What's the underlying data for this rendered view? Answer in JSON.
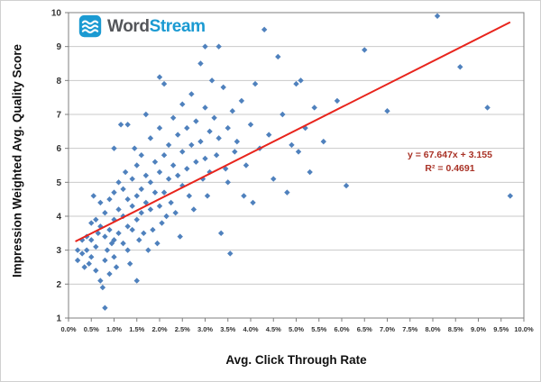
{
  "logo": {
    "icon": "waves-icon",
    "text_primary": "Word",
    "text_secondary": "Stream",
    "primary_color": "#54565a",
    "secondary_color": "#1b9ad2",
    "icon_color": "#1b9ad2"
  },
  "chart_data": {
    "type": "scatter",
    "title": "",
    "xlabel": "Avg. Click Through Rate",
    "ylabel": "Impression Weighted Avg. Quality Score",
    "x_unit": "percent",
    "xlim": [
      0,
      10
    ],
    "ylim": [
      1,
      10
    ],
    "grid": "horizontal",
    "legend": "none",
    "x_ticks": [
      "0.0%",
      "0.5%",
      "1.0%",
      "1.5%",
      "2.0%",
      "2.5%",
      "3.0%",
      "3.5%",
      "4.0%",
      "4.5%",
      "5.0%",
      "5.5%",
      "6.0%",
      "6.5%",
      "7.0%",
      "7.5%",
      "8.0%",
      "8.5%",
      "9.0%",
      "9.5%",
      "10.0%"
    ],
    "y_ticks": [
      "1",
      "2",
      "3",
      "4",
      "5",
      "6",
      "7",
      "8",
      "9",
      "10"
    ],
    "marker": {
      "shape": "diamond",
      "color": "#4f81bd",
      "size": 6.4
    },
    "gridline_color": "#c9c9c9",
    "axis_color": "#7f7f7f",
    "tick_label_color": "#333333",
    "points": [
      [
        0.2,
        3.0
      ],
      [
        0.2,
        2.7
      ],
      [
        0.3,
        3.3
      ],
      [
        0.3,
        2.9
      ],
      [
        0.35,
        2.5
      ],
      [
        0.4,
        3.4
      ],
      [
        0.4,
        3.0
      ],
      [
        0.45,
        2.6
      ],
      [
        0.5,
        3.8
      ],
      [
        0.5,
        3.3
      ],
      [
        0.5,
        2.8
      ],
      [
        0.55,
        4.6
      ],
      [
        0.6,
        3.9
      ],
      [
        0.6,
        3.1
      ],
      [
        0.6,
        2.4
      ],
      [
        0.65,
        3.5
      ],
      [
        0.7,
        4.4
      ],
      [
        0.7,
        3.7
      ],
      [
        0.7,
        2.1
      ],
      [
        0.75,
        1.9
      ],
      [
        0.8,
        4.1
      ],
      [
        0.8,
        3.4
      ],
      [
        0.8,
        2.7
      ],
      [
        0.8,
        1.3
      ],
      [
        0.85,
        3.0
      ],
      [
        0.9,
        4.5
      ],
      [
        0.9,
        3.6
      ],
      [
        0.9,
        2.3
      ],
      [
        0.95,
        3.2
      ],
      [
        1.0,
        6.0
      ],
      [
        1.0,
        4.7
      ],
      [
        1.0,
        3.9
      ],
      [
        1.0,
        3.3
      ],
      [
        1.0,
        2.8
      ],
      [
        1.05,
        2.5
      ],
      [
        1.1,
        5.0
      ],
      [
        1.1,
        4.2
      ],
      [
        1.1,
        3.5
      ],
      [
        1.15,
        6.7
      ],
      [
        1.2,
        4.8
      ],
      [
        1.2,
        4.0
      ],
      [
        1.2,
        3.2
      ],
      [
        1.25,
        5.3
      ],
      [
        1.3,
        6.7
      ],
      [
        1.3,
        4.5
      ],
      [
        1.3,
        3.7
      ],
      [
        1.3,
        3.0
      ],
      [
        1.35,
        2.6
      ],
      [
        1.4,
        5.1
      ],
      [
        1.4,
        4.3
      ],
      [
        1.4,
        3.6
      ],
      [
        1.45,
        6.0
      ],
      [
        1.5,
        5.5
      ],
      [
        1.5,
        4.6
      ],
      [
        1.5,
        3.9
      ],
      [
        1.5,
        2.1
      ],
      [
        1.55,
        3.3
      ],
      [
        1.6,
        5.8
      ],
      [
        1.6,
        4.8
      ],
      [
        1.6,
        4.1
      ],
      [
        1.65,
        3.5
      ],
      [
        1.7,
        7.0
      ],
      [
        1.7,
        5.2
      ],
      [
        1.7,
        4.4
      ],
      [
        1.75,
        3.0
      ],
      [
        1.8,
        6.3
      ],
      [
        1.8,
        5.0
      ],
      [
        1.8,
        4.2
      ],
      [
        1.85,
        3.6
      ],
      [
        1.9,
        5.6
      ],
      [
        1.9,
        4.7
      ],
      [
        1.95,
        3.2
      ],
      [
        2.0,
        8.1
      ],
      [
        2.0,
        6.6
      ],
      [
        2.0,
        5.3
      ],
      [
        2.0,
        4.3
      ],
      [
        2.05,
        3.8
      ],
      [
        2.1,
        7.9
      ],
      [
        2.1,
        5.8
      ],
      [
        2.1,
        4.7
      ],
      [
        2.15,
        4.0
      ],
      [
        2.2,
        6.1
      ],
      [
        2.2,
        5.1
      ],
      [
        2.25,
        4.4
      ],
      [
        2.3,
        6.9
      ],
      [
        2.3,
        5.5
      ],
      [
        2.35,
        4.1
      ],
      [
        2.4,
        6.4
      ],
      [
        2.4,
        5.2
      ],
      [
        2.45,
        3.4
      ],
      [
        2.5,
        7.3
      ],
      [
        2.5,
        5.9
      ],
      [
        2.5,
        4.9
      ],
      [
        2.6,
        6.6
      ],
      [
        2.6,
        5.4
      ],
      [
        2.65,
        4.6
      ],
      [
        2.7,
        7.6
      ],
      [
        2.7,
        6.1
      ],
      [
        2.75,
        4.2
      ],
      [
        2.8,
        6.8
      ],
      [
        2.8,
        5.6
      ],
      [
        2.9,
        8.5
      ],
      [
        2.9,
        6.2
      ],
      [
        2.95,
        5.1
      ],
      [
        3.0,
        9.0
      ],
      [
        3.0,
        7.2
      ],
      [
        3.0,
        5.7
      ],
      [
        3.05,
        4.6
      ],
      [
        3.1,
        6.5
      ],
      [
        3.1,
        5.3
      ],
      [
        3.15,
        8.0
      ],
      [
        3.2,
        6.9
      ],
      [
        3.25,
        5.8
      ],
      [
        3.3,
        9.0
      ],
      [
        3.3,
        6.3
      ],
      [
        3.35,
        3.5
      ],
      [
        3.4,
        7.8
      ],
      [
        3.45,
        5.4
      ],
      [
        3.5,
        6.6
      ],
      [
        3.5,
        5.0
      ],
      [
        3.55,
        2.9
      ],
      [
        3.6,
        7.1
      ],
      [
        3.65,
        5.9
      ],
      [
        3.7,
        6.2
      ],
      [
        3.8,
        7.4
      ],
      [
        3.85,
        4.6
      ],
      [
        3.9,
        5.5
      ],
      [
        4.0,
        6.7
      ],
      [
        4.05,
        4.4
      ],
      [
        4.1,
        7.9
      ],
      [
        4.2,
        6.0
      ],
      [
        4.3,
        9.5
      ],
      [
        4.4,
        6.4
      ],
      [
        4.5,
        5.1
      ],
      [
        4.6,
        8.7
      ],
      [
        4.7,
        7.0
      ],
      [
        4.8,
        4.7
      ],
      [
        4.9,
        6.1
      ],
      [
        5.0,
        7.9
      ],
      [
        5.05,
        5.9
      ],
      [
        5.1,
        8.0
      ],
      [
        5.2,
        6.6
      ],
      [
        5.3,
        5.3
      ],
      [
        5.4,
        7.2
      ],
      [
        5.6,
        6.2
      ],
      [
        5.9,
        7.4
      ],
      [
        6.1,
        4.9
      ],
      [
        6.5,
        8.9
      ],
      [
        7.0,
        7.1
      ],
      [
        8.1,
        9.9
      ],
      [
        8.6,
        8.4
      ],
      [
        9.2,
        7.2
      ],
      [
        9.7,
        4.6
      ]
    ],
    "trendline": {
      "type": "linear",
      "slope": 67.647,
      "intercept": 3.155,
      "equation": "y = 67.647x + 3.155",
      "r_squared": "R² = 0.4691",
      "color": "#e8241c",
      "label_color": "#a93226",
      "x_start": 0.15,
      "x_end": 9.7
    }
  }
}
